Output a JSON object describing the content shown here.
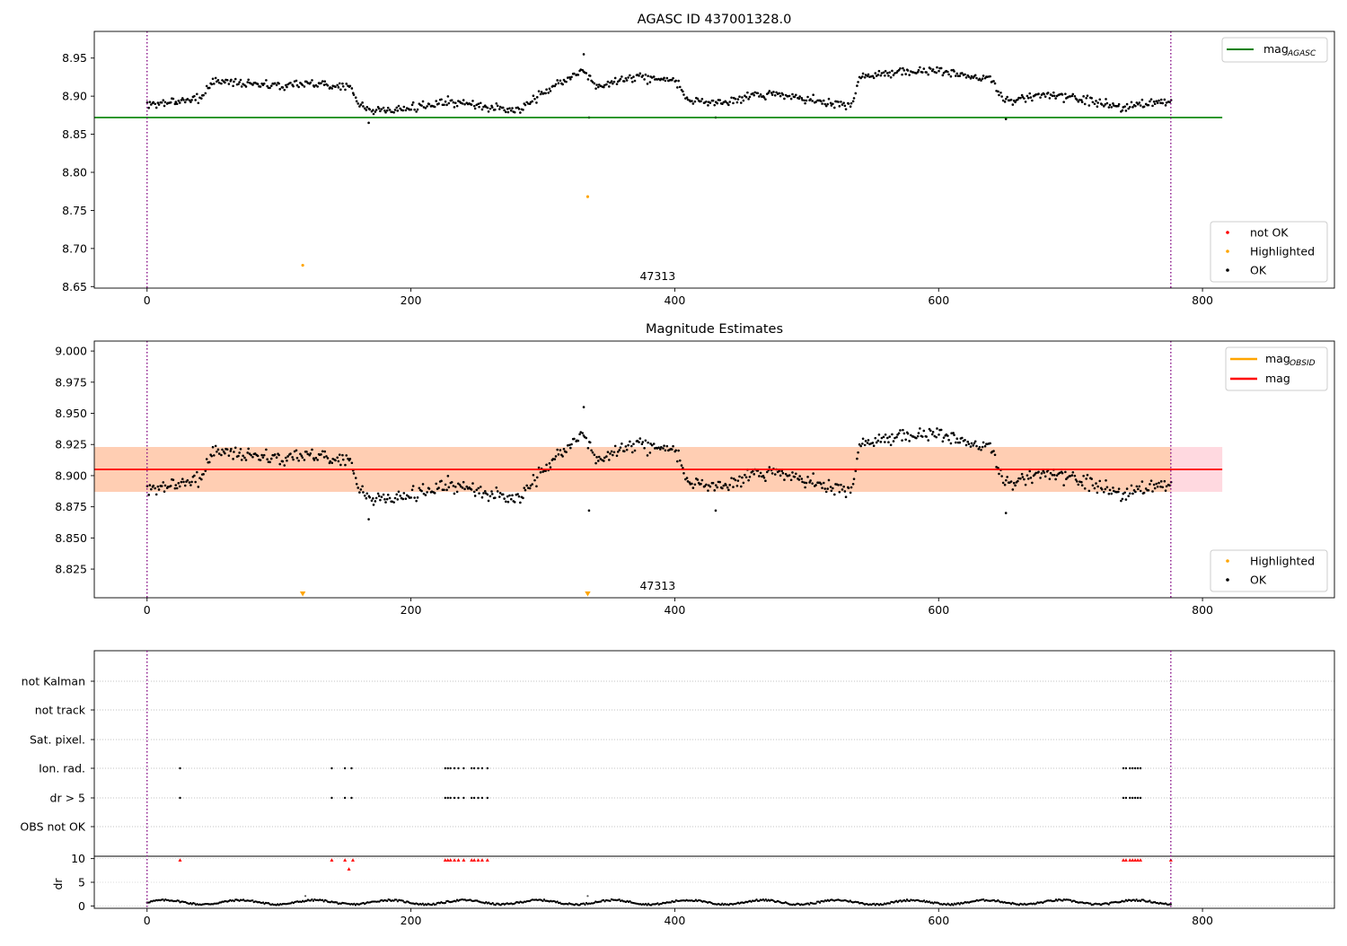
{
  "chart_data": [
    {
      "type": "scatter",
      "title": "AGASC ID 437001328.0",
      "xlim": [
        -40,
        900
      ],
      "ylim": [
        8.648,
        8.985
      ],
      "x_ticks": [
        0,
        200,
        400,
        600,
        800
      ],
      "x_tick_labels": [
        "0",
        "200",
        "400",
        "600",
        "800"
      ],
      "y_ticks": [
        8.65,
        8.7,
        8.75,
        8.8,
        8.85,
        8.9,
        8.95
      ],
      "y_tick_labels": [
        "8.65",
        "8.70",
        "8.75",
        "8.80",
        "8.85",
        "8.90",
        "8.95"
      ],
      "obsid_label": "47313",
      "obsid_boundaries": [
        0,
        776
      ],
      "reference_line": {
        "name": "mag",
        "name_subscript": "AGASC",
        "y": 8.872,
        "x_range": [
          -40,
          815
        ],
        "color": "#008000"
      },
      "ok_trend": [
        [
          0,
          8.888
        ],
        [
          20,
          8.893
        ],
        [
          40,
          8.897
        ],
        [
          50,
          8.92
        ],
        [
          75,
          8.917
        ],
        [
          100,
          8.914
        ],
        [
          125,
          8.917
        ],
        [
          155,
          8.912
        ],
        [
          160,
          8.888
        ],
        [
          175,
          8.88
        ],
        [
          200,
          8.884
        ],
        [
          225,
          8.893
        ],
        [
          250,
          8.888
        ],
        [
          270,
          8.882
        ],
        [
          285,
          8.885
        ],
        [
          300,
          8.905
        ],
        [
          320,
          8.925
        ],
        [
          330,
          8.935
        ],
        [
          340,
          8.913
        ],
        [
          370,
          8.925
        ],
        [
          400,
          8.922
        ],
        [
          410,
          8.895
        ],
        [
          430,
          8.889
        ],
        [
          460,
          8.902
        ],
        [
          480,
          8.902
        ],
        [
          510,
          8.892
        ],
        [
          535,
          8.888
        ],
        [
          540,
          8.925
        ],
        [
          570,
          8.932
        ],
        [
          600,
          8.934
        ],
        [
          640,
          8.922
        ],
        [
          650,
          8.893
        ],
        [
          680,
          8.902
        ],
        [
          710,
          8.895
        ],
        [
          740,
          8.885
        ],
        [
          760,
          8.89
        ],
        [
          776,
          8.893
        ]
      ],
      "highlighted_points": [
        [
          118,
          8.678
        ],
        [
          334,
          8.768
        ]
      ],
      "outliers": [
        [
          168,
          8.865
        ],
        [
          331,
          8.955
        ],
        [
          335,
          8.872
        ],
        [
          431,
          8.872
        ],
        [
          651,
          8.87
        ]
      ],
      "legend_upper": {
        "position": "upper right",
        "entries": [
          {
            "label": "mag",
            "subscript": "AGASC",
            "color": "#008000"
          }
        ]
      },
      "legend_lower": {
        "position": "lower right",
        "entries": [
          {
            "label": "not OK",
            "color": "#ff0000"
          },
          {
            "label": "Highlighted",
            "color": "#ffa500"
          },
          {
            "label": "OK",
            "color": "#000000"
          }
        ]
      }
    },
    {
      "type": "scatter",
      "title": "Magnitude Estimates",
      "xlim": [
        -40,
        900
      ],
      "ylim": [
        8.802,
        9.008
      ],
      "x_ticks": [
        0,
        200,
        400,
        600,
        800
      ],
      "x_tick_labels": [
        "0",
        "200",
        "400",
        "600",
        "800"
      ],
      "y_ticks": [
        8.825,
        8.85,
        8.875,
        8.9,
        8.925,
        8.95,
        8.975,
        9.0
      ],
      "y_tick_labels": [
        "8.825",
        "8.850",
        "8.875",
        "8.900",
        "8.925",
        "8.950",
        "8.975",
        "9.000"
      ],
      "obsid_label": "47313",
      "obsid_boundaries": [
        0,
        776
      ],
      "mag_line": {
        "name": "mag",
        "y": 8.905,
        "x_range": [
          -40,
          815
        ],
        "color": "#ff0000"
      },
      "mag_band": {
        "y_range": [
          8.887,
          8.923
        ],
        "color": "#ffc0cb"
      },
      "obsid_band": {
        "name": "mag",
        "name_subscript": "OBSID",
        "y_range": [
          8.887,
          8.923
        ],
        "x_range": [
          -40,
          776
        ],
        "color": "#ffa500"
      },
      "highlighted_markers": [
        118,
        334
      ],
      "ok_trend": [
        [
          0,
          8.888
        ],
        [
          20,
          8.893
        ],
        [
          40,
          8.897
        ],
        [
          50,
          8.92
        ],
        [
          75,
          8.917
        ],
        [
          100,
          8.914
        ],
        [
          125,
          8.917
        ],
        [
          155,
          8.912
        ],
        [
          160,
          8.888
        ],
        [
          175,
          8.88
        ],
        [
          200,
          8.884
        ],
        [
          225,
          8.893
        ],
        [
          250,
          8.888
        ],
        [
          270,
          8.882
        ],
        [
          285,
          8.885
        ],
        [
          300,
          8.905
        ],
        [
          320,
          8.925
        ],
        [
          330,
          8.935
        ],
        [
          340,
          8.913
        ],
        [
          370,
          8.925
        ],
        [
          400,
          8.922
        ],
        [
          410,
          8.895
        ],
        [
          430,
          8.889
        ],
        [
          460,
          8.902
        ],
        [
          480,
          8.902
        ],
        [
          510,
          8.892
        ],
        [
          535,
          8.888
        ],
        [
          540,
          8.925
        ],
        [
          570,
          8.932
        ],
        [
          600,
          8.934
        ],
        [
          640,
          8.922
        ],
        [
          650,
          8.893
        ],
        [
          680,
          8.902
        ],
        [
          710,
          8.895
        ],
        [
          740,
          8.885
        ],
        [
          760,
          8.89
        ],
        [
          776,
          8.893
        ]
      ],
      "outliers": [
        [
          168,
          8.865
        ],
        [
          331,
          8.955
        ],
        [
          335,
          8.872
        ],
        [
          431,
          8.872
        ],
        [
          651,
          8.87
        ]
      ],
      "legend_upper": {
        "position": "upper right",
        "entries": [
          {
            "label": "mag",
            "subscript": "OBSID",
            "color": "#ffa500"
          },
          {
            "label": "mag",
            "color": "#ff0000"
          }
        ]
      },
      "legend_lower": {
        "position": "lower right",
        "entries": [
          {
            "label": "Highlighted",
            "color": "#ffa500"
          },
          {
            "label": "OK",
            "color": "#000000"
          }
        ]
      }
    },
    {
      "type": "scatter",
      "title": "",
      "xlim": [
        -40,
        900
      ],
      "x_ticks": [
        0,
        200,
        400,
        600,
        800
      ],
      "x_tick_labels": [
        "0",
        "200",
        "400",
        "600",
        "800"
      ],
      "flag_categories": [
        "not Kalman",
        "not track",
        "Sat. pixel.",
        "Ion. rad.",
        "dr > 5",
        "OBS not OK"
      ],
      "flag_points": {
        "Ion. rad.": [
          25,
          140,
          150,
          155,
          226,
          228,
          230,
          233,
          236,
          240,
          246,
          248,
          251,
          254,
          258,
          740,
          742,
          745,
          747,
          749,
          751,
          753
        ],
        "dr > 5": [
          25,
          140,
          150,
          155,
          226,
          228,
          230,
          233,
          236,
          240,
          246,
          248,
          251,
          254,
          258,
          740,
          742,
          745,
          747,
          749,
          751,
          753
        ]
      },
      "dr_ylabel": "dr",
      "dr_ylim": [
        -0.5,
        10.5
      ],
      "dr_y_ticks": [
        0,
        5,
        10
      ],
      "dr_y_tick_labels": [
        "0",
        "5",
        "10"
      ],
      "dr_high_points": [
        [
          25,
          9.7
        ],
        [
          140,
          9.7
        ],
        [
          150,
          9.7
        ],
        [
          153,
          7.8
        ],
        [
          156,
          9.7
        ],
        [
          226,
          9.7
        ],
        [
          228,
          9.7
        ],
        [
          230,
          9.7
        ],
        [
          233,
          9.7
        ],
        [
          236,
          9.7
        ],
        [
          240,
          9.7
        ],
        [
          246,
          9.7
        ],
        [
          248,
          9.7
        ],
        [
          251,
          9.7
        ],
        [
          254,
          9.7
        ],
        [
          258,
          9.7
        ],
        [
          740,
          9.7
        ],
        [
          742,
          9.7
        ],
        [
          745,
          9.7
        ],
        [
          747,
          9.7
        ],
        [
          749,
          9.7
        ],
        [
          751,
          9.7
        ],
        [
          753,
          9.7
        ],
        [
          776,
          9.7
        ]
      ],
      "dr_isolated_points": [
        [
          120,
          2.1
        ],
        [
          334,
          2.1
        ]
      ],
      "dr_cutoff": 10.3
    }
  ]
}
